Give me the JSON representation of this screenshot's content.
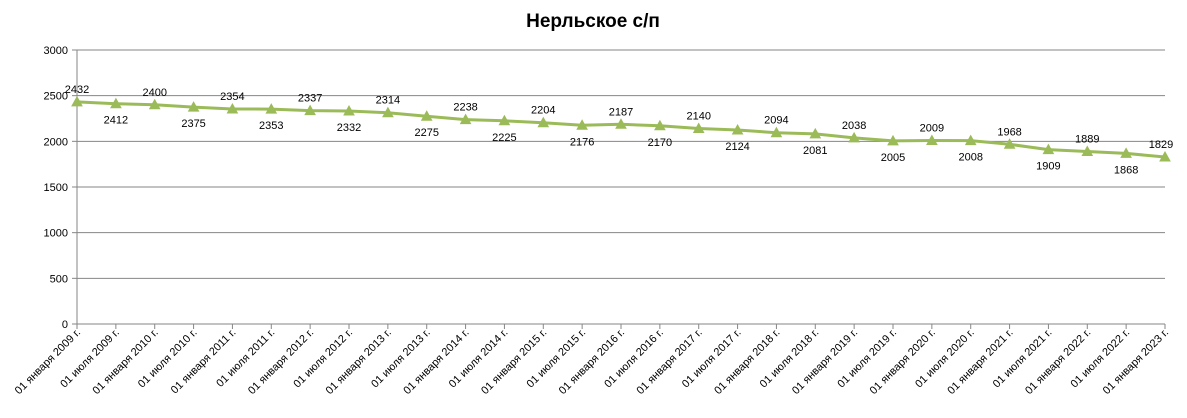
{
  "chart_data": {
    "type": "line",
    "title": "Нерльское с/п",
    "xlabel": "",
    "ylabel": "",
    "ylim": [
      0,
      3000
    ],
    "yticks": [
      0,
      500,
      1000,
      1500,
      2000,
      2500,
      3000
    ],
    "grid": true,
    "legend": "none",
    "series_color": "#9BBB59",
    "categories": [
      "01 января 2009 г.",
      "01 июля 2009 г.",
      "01 января 2010 г.",
      "01 июля 2010 г.",
      "01 января 2011 г.",
      "01 июля 2011 г.",
      "01 января 2012 г.",
      "01 июля 2012 г.",
      "01 января 2013 г.",
      "01 июля 2013 г.",
      "01 января 2014 г.",
      "01 июля 2014 г.",
      "01 января 2015 г.",
      "01 июля 2015 г.",
      "01 января 2016 г.",
      "01 июля 2016 г.",
      "01 января 2017 г.",
      "01 июля 2017 г.",
      "01 января 2018 г.",
      "01 июля 2018 г.",
      "01 января 2019 г.",
      "01 июля 2019 г.",
      "01 января 2020 г.",
      "01 июля 2020 г.",
      "01 января 2021 г.",
      "01 июля 2021 г.",
      "01 января 2022 г.",
      "01 июля 2022 г.",
      "01 января 2023 г."
    ],
    "values": [
      2432,
      2412,
      2400,
      2375,
      2354,
      2353,
      2337,
      2332,
      2314,
      2275,
      2238,
      2225,
      2204,
      2176,
      2187,
      2170,
      2140,
      2124,
      2094,
      2081,
      2038,
      2005,
      2009,
      2008,
      1968,
      1909,
      1889,
      1868,
      1829
    ]
  }
}
